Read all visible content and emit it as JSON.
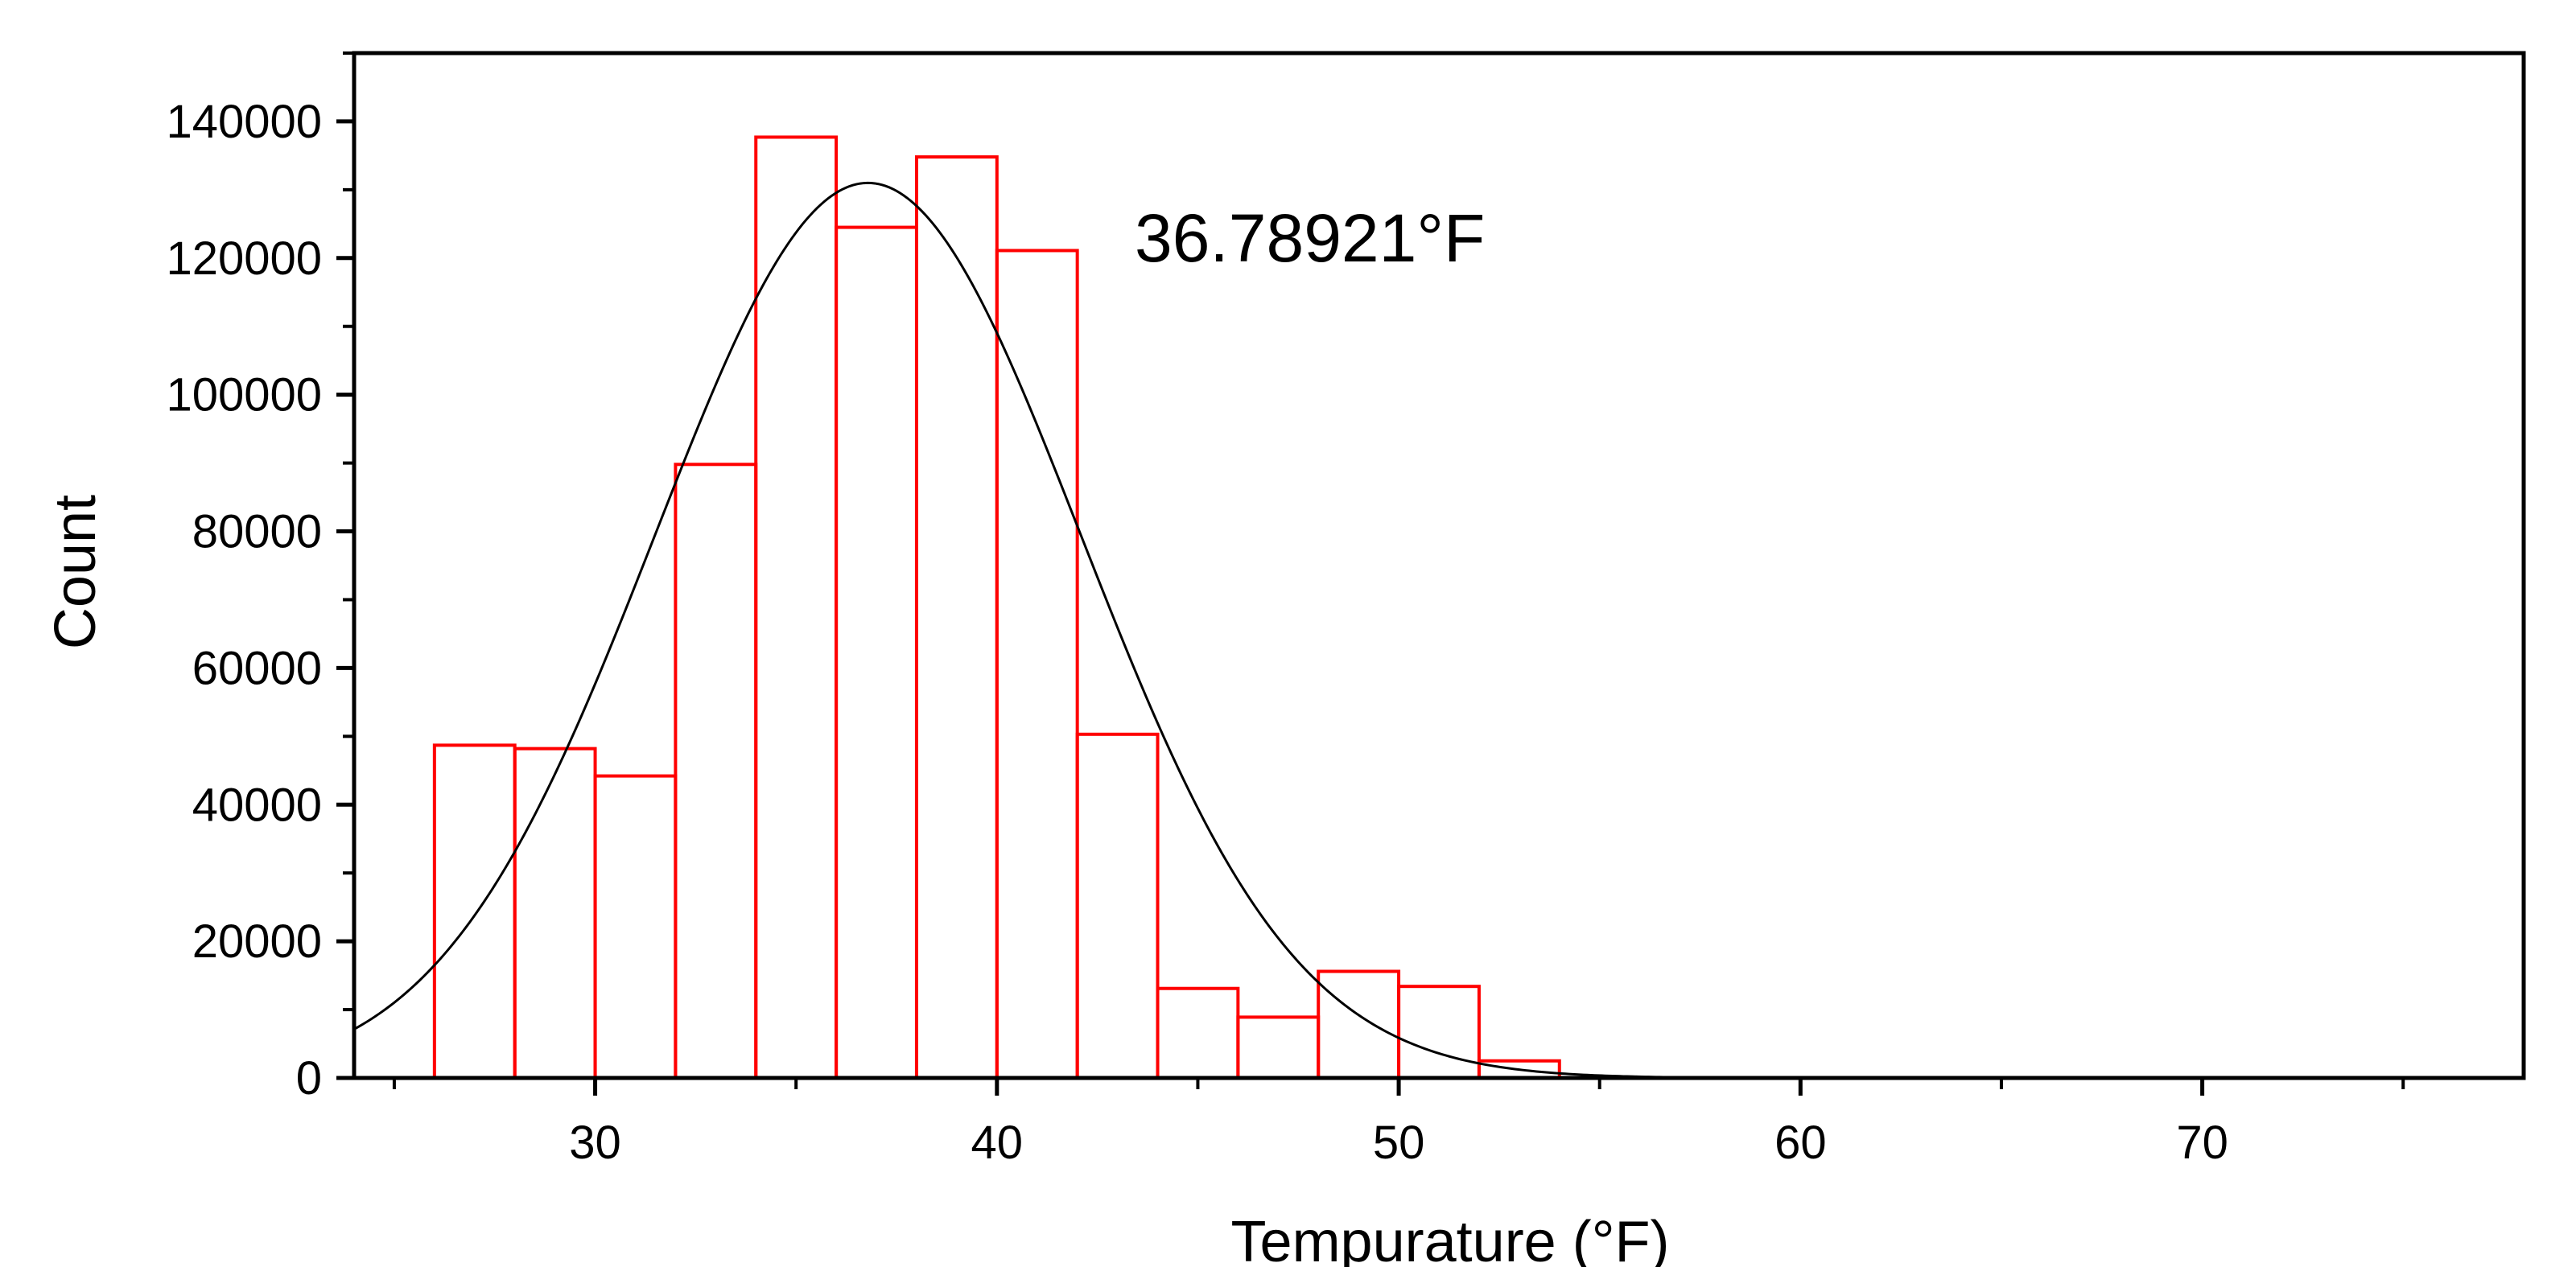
{
  "chart_data": {
    "type": "bar",
    "subtype": "histogram",
    "title": "",
    "xlabel": "Tempurature (°F)",
    "ylabel": "Count",
    "xlim": [
      24,
      78
    ],
    "ylim": [
      0,
      150000
    ],
    "x_ticks": [
      30,
      40,
      50,
      60,
      70
    ],
    "y_ticks": [
      0,
      20000,
      40000,
      60000,
      80000,
      100000,
      120000,
      140000
    ],
    "bins": [
      {
        "start": 26,
        "end": 28,
        "count": 48700
      },
      {
        "start": 28,
        "end": 30,
        "count": 48200
      },
      {
        "start": 30,
        "end": 32,
        "count": 44200
      },
      {
        "start": 32,
        "end": 34,
        "count": 89800
      },
      {
        "start": 34,
        "end": 36,
        "count": 137700
      },
      {
        "start": 36,
        "end": 38,
        "count": 124500
      },
      {
        "start": 38,
        "end": 40,
        "count": 134800
      },
      {
        "start": 40,
        "end": 42,
        "count": 121100
      },
      {
        "start": 42,
        "end": 44,
        "count": 50300
      },
      {
        "start": 44,
        "end": 46,
        "count": 13100
      },
      {
        "start": 46,
        "end": 48,
        "count": 8900
      },
      {
        "start": 48,
        "end": 50,
        "count": 15600
      },
      {
        "start": 50,
        "end": 52,
        "count": 13400
      },
      {
        "start": 52,
        "end": 54,
        "count": 2500
      }
    ],
    "fit_curve": {
      "type": "normal",
      "mean": 36.78921,
      "peak": 131000,
      "sigma": 5.3
    },
    "annotation": "36.78921°F",
    "grid": false,
    "legend": "none",
    "colors": {
      "bars": "#ff0000",
      "fit": "#000000",
      "axes": "#000000"
    }
  }
}
